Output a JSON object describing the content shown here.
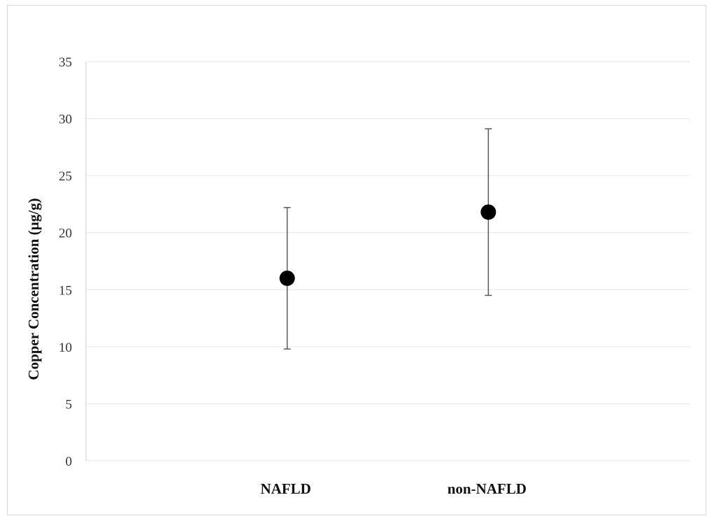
{
  "chart_data": {
    "type": "scatter",
    "title": "",
    "xlabel": "",
    "ylabel": "Copper Concentration (µg/g)",
    "categories": [
      "NAFLD",
      "non-NAFLD"
    ],
    "series": [
      {
        "values": [
          16.0,
          21.8
        ],
        "error_low": [
          9.8,
          14.5
        ],
        "error_high": [
          22.2,
          29.1
        ]
      }
    ],
    "ylim": [
      0,
      35
    ],
    "yticks": [
      0,
      5,
      10,
      15,
      20,
      25,
      30,
      35
    ],
    "grid": true,
    "legend": "none",
    "colors": {
      "marker": "#000000",
      "error_bar": "#595959",
      "grid": "#e6e6e6",
      "axis": "#d0d0d0"
    }
  }
}
